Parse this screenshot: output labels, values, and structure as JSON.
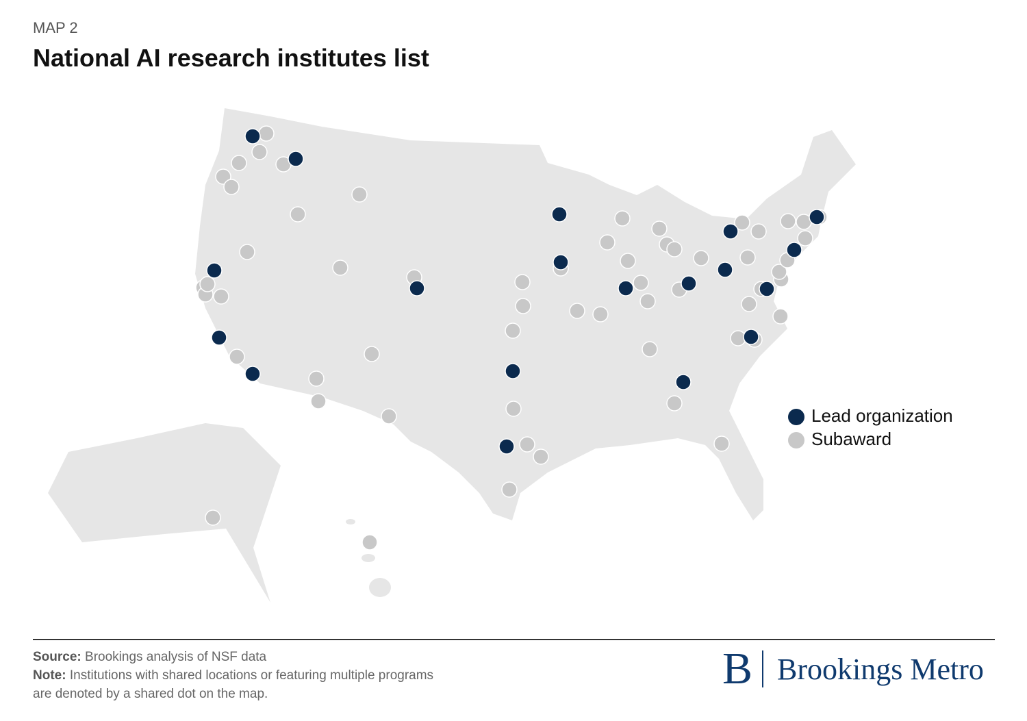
{
  "label": "MAP 2",
  "title": "National AI research institutes list",
  "legend": [
    {
      "name": "Lead organization",
      "color": "#0b2a4e"
    },
    {
      "name": "Subaward",
      "color": "#c8c8c8"
    }
  ],
  "footer": {
    "source_label": "Source:",
    "source": "Brookings analysis of NSF data",
    "note_label": "Note:",
    "note": "Institutions with shared locations or featuring multiple programs are denoted by a shared dot on the map.",
    "brand_letter": "B",
    "brand": "Brookings Metro"
  }
}
